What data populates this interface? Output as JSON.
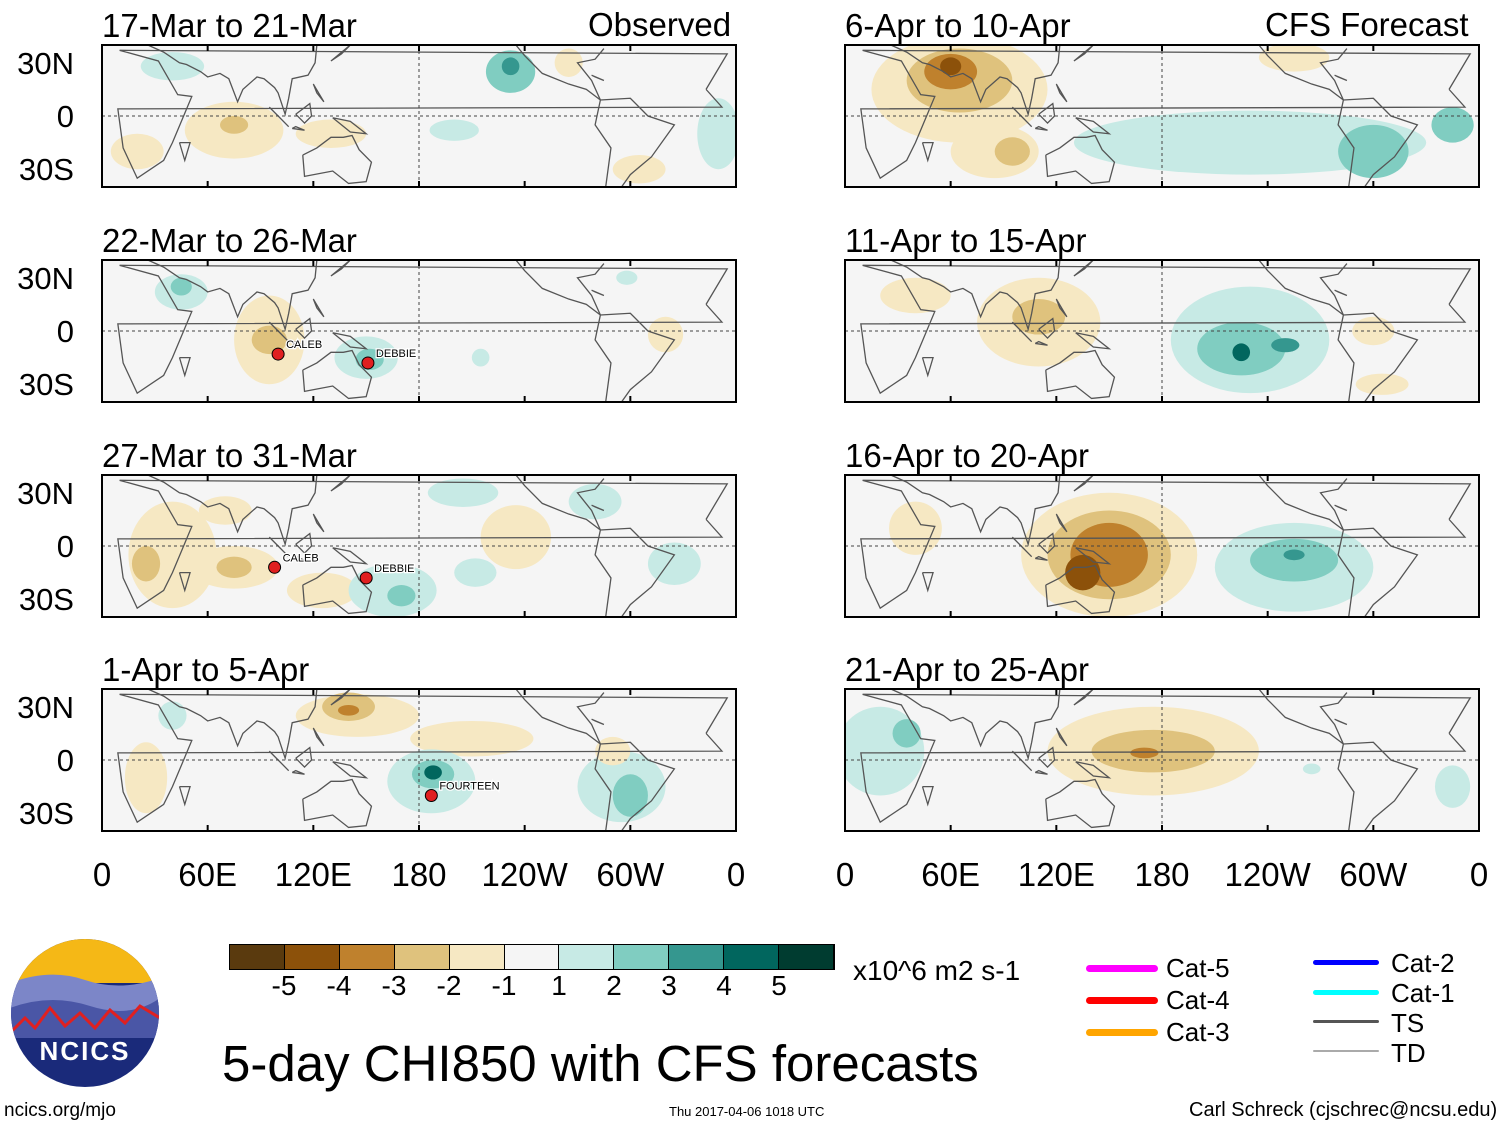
{
  "header": {
    "observed_label": "Observed",
    "forecast_label": "CFS Forecast"
  },
  "lat_labels": [
    "30N",
    "0",
    "30S"
  ],
  "lon_labels": [
    "0",
    "60E",
    "120E",
    "180",
    "120W",
    "60W",
    "0"
  ],
  "chart_data": {
    "type": "heatmap",
    "title": "5-day CHI850 with CFS forecasts",
    "units": "x10^6 m2 s-1",
    "levels": [
      -5,
      -4,
      -3,
      -2,
      -1,
      1,
      2,
      3,
      4,
      5
    ],
    "level_colors": [
      "#5a3a0e",
      "#8c510a",
      "#bf812d",
      "#dfc27d",
      "#f6e8c3",
      "#f5f5f5",
      "#c7eae5",
      "#80cdc1",
      "#35978f",
      "#01665e",
      "#003c30"
    ],
    "panels": [
      {
        "title": "17-Mar to 21-Mar",
        "column": "observed",
        "anomalies": [
          [
            232,
            25,
            14,
            12,
            2
          ],
          [
            232,
            28,
            5,
            5,
            3
          ],
          [
            200,
            -8,
            14,
            6,
            1
          ],
          [
            350,
            -10,
            12,
            20,
            1
          ],
          [
            40,
            28,
            18,
            8,
            1
          ],
          [
            75,
            -8,
            28,
            16,
            -1
          ],
          [
            75,
            -5,
            8,
            5,
            -2
          ],
          [
            130,
            -10,
            20,
            8,
            -1
          ],
          [
            20,
            -20,
            15,
            10,
            -1
          ],
          [
            265,
            30,
            8,
            8,
            -1
          ],
          [
            305,
            -30,
            15,
            8,
            -1
          ]
        ],
        "storms": []
      },
      {
        "title": "22-Mar to 26-Mar",
        "column": "observed",
        "anomalies": [
          [
            45,
            22,
            15,
            10,
            1
          ],
          [
            45,
            25,
            6,
            5,
            2
          ],
          [
            95,
            -5,
            20,
            25,
            -1
          ],
          [
            95,
            -5,
            10,
            8,
            -2
          ],
          [
            150,
            -15,
            18,
            12,
            1
          ],
          [
            152,
            -16,
            8,
            6,
            2
          ],
          [
            215,
            -15,
            5,
            5,
            1
          ],
          [
            320,
            -2,
            10,
            10,
            -1
          ],
          [
            298,
            30,
            6,
            4,
            1
          ]
        ],
        "storms": [
          {
            "name": "CALEB",
            "lon": 100,
            "lat": -13
          },
          {
            "name": "DEBBIE",
            "lon": 151,
            "lat": -18
          }
        ]
      },
      {
        "title": "27-Mar to 31-Mar",
        "column": "observed",
        "anomalies": [
          [
            40,
            -5,
            25,
            30,
            -1
          ],
          [
            25,
            -10,
            8,
            10,
            -2
          ],
          [
            70,
            20,
            15,
            8,
            -1
          ],
          [
            75,
            -12,
            25,
            12,
            -1
          ],
          [
            75,
            -12,
            10,
            6,
            -2
          ],
          [
            125,
            -25,
            20,
            10,
            -1
          ],
          [
            165,
            -25,
            25,
            15,
            1
          ],
          [
            170,
            -28,
            8,
            6,
            2
          ],
          [
            205,
            30,
            20,
            8,
            1
          ],
          [
            235,
            5,
            20,
            18,
            -1
          ],
          [
            280,
            25,
            15,
            10,
            1
          ],
          [
            325,
            -10,
            15,
            12,
            1
          ],
          [
            212,
            -15,
            12,
            8,
            1
          ]
        ],
        "storms": [
          {
            "name": "CALEB",
            "lon": 98,
            "lat": -12
          },
          {
            "name": "DEBBIE",
            "lon": 150,
            "lat": -18
          }
        ]
      },
      {
        "title": "1-Apr to 5-Apr",
        "column": "observed",
        "anomalies": [
          [
            145,
            25,
            35,
            12,
            -1
          ],
          [
            140,
            30,
            15,
            8,
            -2
          ],
          [
            140,
            28,
            6,
            3,
            -3
          ],
          [
            210,
            12,
            35,
            10,
            -1
          ],
          [
            187,
            -12,
            25,
            18,
            1
          ],
          [
            188,
            -8,
            12,
            8,
            2
          ],
          [
            188,
            -7,
            5,
            4,
            4
          ],
          [
            295,
            -15,
            25,
            20,
            1
          ],
          [
            300,
            -20,
            10,
            12,
            2
          ],
          [
            25,
            -10,
            12,
            20,
            -1
          ],
          [
            290,
            5,
            10,
            8,
            -1
          ],
          [
            40,
            25,
            8,
            8,
            1
          ]
        ],
        "storms": [
          {
            "name": "FOURTEEN",
            "lon": 187,
            "lat": -20
          }
        ]
      },
      {
        "title": "6-Apr to 10-Apr",
        "column": "forecast",
        "anomalies": [
          [
            65,
            15,
            50,
            30,
            -1
          ],
          [
            65,
            20,
            30,
            18,
            -2
          ],
          [
            60,
            25,
            15,
            10,
            -3
          ],
          [
            60,
            28,
            6,
            5,
            -4
          ],
          [
            85,
            -20,
            25,
            15,
            -1
          ],
          [
            95,
            -20,
            10,
            8,
            -2
          ],
          [
            230,
            -15,
            100,
            18,
            1
          ],
          [
            300,
            -20,
            20,
            15,
            2
          ],
          [
            345,
            -5,
            12,
            10,
            2
          ],
          [
            255,
            33,
            20,
            8,
            -1
          ]
        ],
        "storms": []
      },
      {
        "title": "11-Apr to 15-Apr",
        "column": "forecast",
        "anomalies": [
          [
            110,
            5,
            35,
            25,
            -1
          ],
          [
            110,
            8,
            15,
            10,
            -2
          ],
          [
            40,
            20,
            20,
            10,
            -1
          ],
          [
            230,
            -5,
            45,
            30,
            1
          ],
          [
            225,
            -10,
            25,
            15,
            2
          ],
          [
            225,
            -12,
            5,
            5,
            4
          ],
          [
            250,
            -8,
            8,
            4,
            3
          ],
          [
            305,
            -30,
            15,
            6,
            -1
          ],
          [
            300,
            0,
            12,
            8,
            -1
          ]
        ],
        "storms": []
      },
      {
        "title": "16-Apr to 20-Apr",
        "column": "forecast",
        "anomalies": [
          [
            150,
            -5,
            50,
            35,
            -1
          ],
          [
            150,
            -5,
            35,
            25,
            -2
          ],
          [
            150,
            -5,
            22,
            18,
            -3
          ],
          [
            135,
            -15,
            10,
            10,
            -4
          ],
          [
            255,
            -12,
            45,
            25,
            1
          ],
          [
            255,
            -8,
            25,
            12,
            2
          ],
          [
            255,
            -5,
            6,
            3,
            3
          ],
          [
            40,
            10,
            15,
            15,
            -1
          ]
        ],
        "storms": []
      },
      {
        "title": "21-Apr to 25-Apr",
        "column": "forecast",
        "anomalies": [
          [
            175,
            5,
            60,
            25,
            -1
          ],
          [
            175,
            5,
            35,
            12,
            -2
          ],
          [
            170,
            4,
            8,
            3,
            -3
          ],
          [
            20,
            5,
            25,
            25,
            1
          ],
          [
            35,
            15,
            8,
            8,
            2
          ],
          [
            345,
            -15,
            10,
            12,
            1
          ],
          [
            265,
            -5,
            5,
            3,
            1
          ]
        ],
        "storms": []
      }
    ]
  },
  "track_legend": [
    {
      "label": "Cat-5",
      "color": "#ff00ff"
    },
    {
      "label": "Cat-4",
      "color": "#ff0000"
    },
    {
      "label": "Cat-3",
      "color": "#ffa500"
    },
    {
      "label": "Cat-2",
      "color": "#0000ff"
    },
    {
      "label": "Cat-1",
      "color": "#00ffff"
    },
    {
      "label": "TS",
      "color": "#555555"
    },
    {
      "label": "TD",
      "color": "#aaaaaa"
    }
  ],
  "logo": {
    "text": "NCICS"
  },
  "footer": {
    "url": "ncics.org/mjo",
    "timestamp": "Thu 2017-04-06 1018 UTC",
    "author": "Carl Schreck (cjschrec@ncsu.edu)"
  }
}
